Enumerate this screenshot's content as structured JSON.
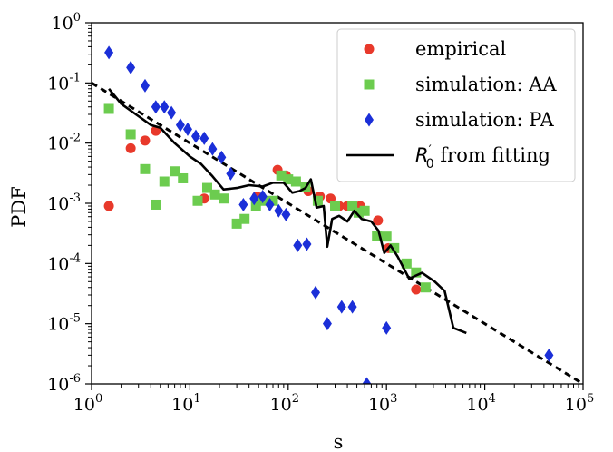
{
  "chart_data": {
    "type": "scatter",
    "xscale": "log",
    "yscale": "log",
    "xlim": [
      1,
      100000
    ],
    "ylim": [
      1e-06,
      1
    ],
    "xlabel": "s",
    "ylabel": "PDF",
    "legend_position": "top-right",
    "grid": false,
    "x_ticks": [
      {
        "base": "10",
        "exp": "0",
        "value": 1
      },
      {
        "base": "10",
        "exp": "1",
        "value": 10
      },
      {
        "base": "10",
        "exp": "2",
        "value": 100
      },
      {
        "base": "10",
        "exp": "3",
        "value": 1000
      },
      {
        "base": "10",
        "exp": "4",
        "value": 10000
      },
      {
        "base": "10",
        "exp": "5",
        "value": 100000
      }
    ],
    "y_ticks": [
      {
        "base": "10",
        "exp": "0",
        "value": 1
      },
      {
        "base": "10",
        "exp": "-1",
        "value": 0.1
      },
      {
        "base": "10",
        "exp": "-2",
        "value": 0.01
      },
      {
        "base": "10",
        "exp": "-3",
        "value": 0.001
      },
      {
        "base": "10",
        "exp": "-4",
        "value": 0.0001
      },
      {
        "base": "10",
        "exp": "-5",
        "value": 1e-05
      },
      {
        "base": "10",
        "exp": "-6",
        "value": 1e-06
      }
    ],
    "series": [
      {
        "name": "empirical",
        "marker": "circle",
        "color": "#e8392b",
        "points": [
          [
            1.5,
            0.0009
          ],
          [
            2.5,
            0.0082
          ],
          [
            3.5,
            0.011
          ],
          [
            4.5,
            0.016
          ],
          [
            14,
            0.0012
          ],
          [
            48,
            0.0013
          ],
          [
            78,
            0.0036
          ],
          [
            95,
            0.0029
          ],
          [
            120,
            0.0023
          ],
          [
            160,
            0.0016
          ],
          [
            210,
            0.0013
          ],
          [
            270,
            0.0012
          ],
          [
            330,
            0.0009
          ],
          [
            400,
            0.0009
          ],
          [
            540,
            0.0009
          ],
          [
            820,
            0.00052
          ],
          [
            1050,
            0.00018
          ],
          [
            2000,
            3.7e-05
          ]
        ]
      },
      {
        "name": "simulation: AA",
        "marker": "square",
        "color": "#6ccc4f",
        "points": [
          [
            1.5,
            0.037
          ],
          [
            2.5,
            0.014
          ],
          [
            3.5,
            0.0037
          ],
          [
            4.5,
            0.00095
          ],
          [
            5.5,
            0.0023
          ],
          [
            7,
            0.0034
          ],
          [
            8.5,
            0.0026
          ],
          [
            12,
            0.0011
          ],
          [
            15,
            0.0018
          ],
          [
            18,
            0.0014
          ],
          [
            22,
            0.0012
          ],
          [
            30,
            0.00046
          ],
          [
            36,
            0.00055
          ],
          [
            47,
            0.0009
          ],
          [
            55,
            0.0011
          ],
          [
            70,
            0.0011
          ],
          [
            85,
            0.0029
          ],
          [
            100,
            0.0025
          ],
          [
            120,
            0.0023
          ],
          [
            150,
            0.0019
          ],
          [
            200,
            0.0011
          ],
          [
            300,
            0.0009
          ],
          [
            450,
            0.0009
          ],
          [
            520,
            0.0007
          ],
          [
            600,
            0.00075
          ],
          [
            800,
            0.00029
          ],
          [
            1000,
            0.00028
          ],
          [
            1200,
            0.00018
          ],
          [
            1600,
            0.0001
          ],
          [
            2000,
            7.1e-05
          ],
          [
            2500,
            4e-05
          ]
        ]
      },
      {
        "name": "simulation: PA",
        "marker": "diamond",
        "color": "#1b2fd8",
        "points": [
          [
            1.5,
            0.32
          ],
          [
            2.5,
            0.18
          ],
          [
            3.5,
            0.09
          ],
          [
            4.5,
            0.04
          ],
          [
            5.5,
            0.04
          ],
          [
            6.5,
            0.032
          ],
          [
            8,
            0.02
          ],
          [
            9.5,
            0.017
          ],
          [
            11.5,
            0.013
          ],
          [
            14,
            0.012
          ],
          [
            17,
            0.008
          ],
          [
            21,
            0.0058
          ],
          [
            26,
            0.0031
          ],
          [
            35,
            0.00095
          ],
          [
            45,
            0.0012
          ],
          [
            55,
            0.0013
          ],
          [
            65,
            0.00095
          ],
          [
            80,
            0.00075
          ],
          [
            95,
            0.00065
          ],
          [
            125,
            0.0002
          ],
          [
            155,
            0.00021
          ],
          [
            190,
            3.3e-05
          ],
          [
            250,
            1e-05
          ],
          [
            350,
            1.9e-05
          ],
          [
            450,
            1.9e-05
          ],
          [
            630,
            1e-06
          ],
          [
            1000,
            8.5e-06
          ],
          [
            45000,
            3e-06
          ]
        ]
      },
      {
        "name": "R'0 from fitting",
        "legend_label_main": "R",
        "legend_label_sub": "0",
        "legend_label_sup": "′",
        "legend_label_rest": " from fitting",
        "style": "solid-line",
        "color": "#000000",
        "points": [
          [
            1.5,
            0.08
          ],
          [
            2,
            0.045
          ],
          [
            3,
            0.028
          ],
          [
            4,
            0.02
          ],
          [
            5,
            0.018
          ],
          [
            7,
            0.01
          ],
          [
            10,
            0.006
          ],
          [
            13,
            0.0045
          ],
          [
            17,
            0.0028
          ],
          [
            22,
            0.0017
          ],
          [
            30,
            0.0018
          ],
          [
            40,
            0.002
          ],
          [
            55,
            0.0019
          ],
          [
            70,
            0.0022
          ],
          [
            90,
            0.0022
          ],
          [
            110,
            0.0015
          ],
          [
            130,
            0.0016
          ],
          [
            150,
            0.0018
          ],
          [
            170,
            0.0025
          ],
          [
            195,
            0.00085
          ],
          [
            230,
            0.0009
          ],
          [
            250,
            0.00019
          ],
          [
            280,
            0.00055
          ],
          [
            330,
            0.00062
          ],
          [
            400,
            0.0005
          ],
          [
            470,
            0.00075
          ],
          [
            560,
            0.00055
          ],
          [
            700,
            0.0005
          ],
          [
            830,
            0.00035
          ],
          [
            950,
            0.00015
          ],
          [
            1100,
            0.0002
          ],
          [
            1300,
            0.00013
          ],
          [
            1700,
            5.6e-05
          ],
          [
            2300,
            7e-05
          ],
          [
            3100,
            5e-05
          ],
          [
            3900,
            3.5e-05
          ],
          [
            4800,
            8.5e-06
          ],
          [
            6500,
            7e-06
          ]
        ]
      },
      {
        "name": "power-law guide",
        "style": "dashed-line",
        "color": "#000000",
        "points": [
          [
            1,
            0.1
          ],
          [
            100000,
            1e-06
          ]
        ]
      }
    ]
  }
}
